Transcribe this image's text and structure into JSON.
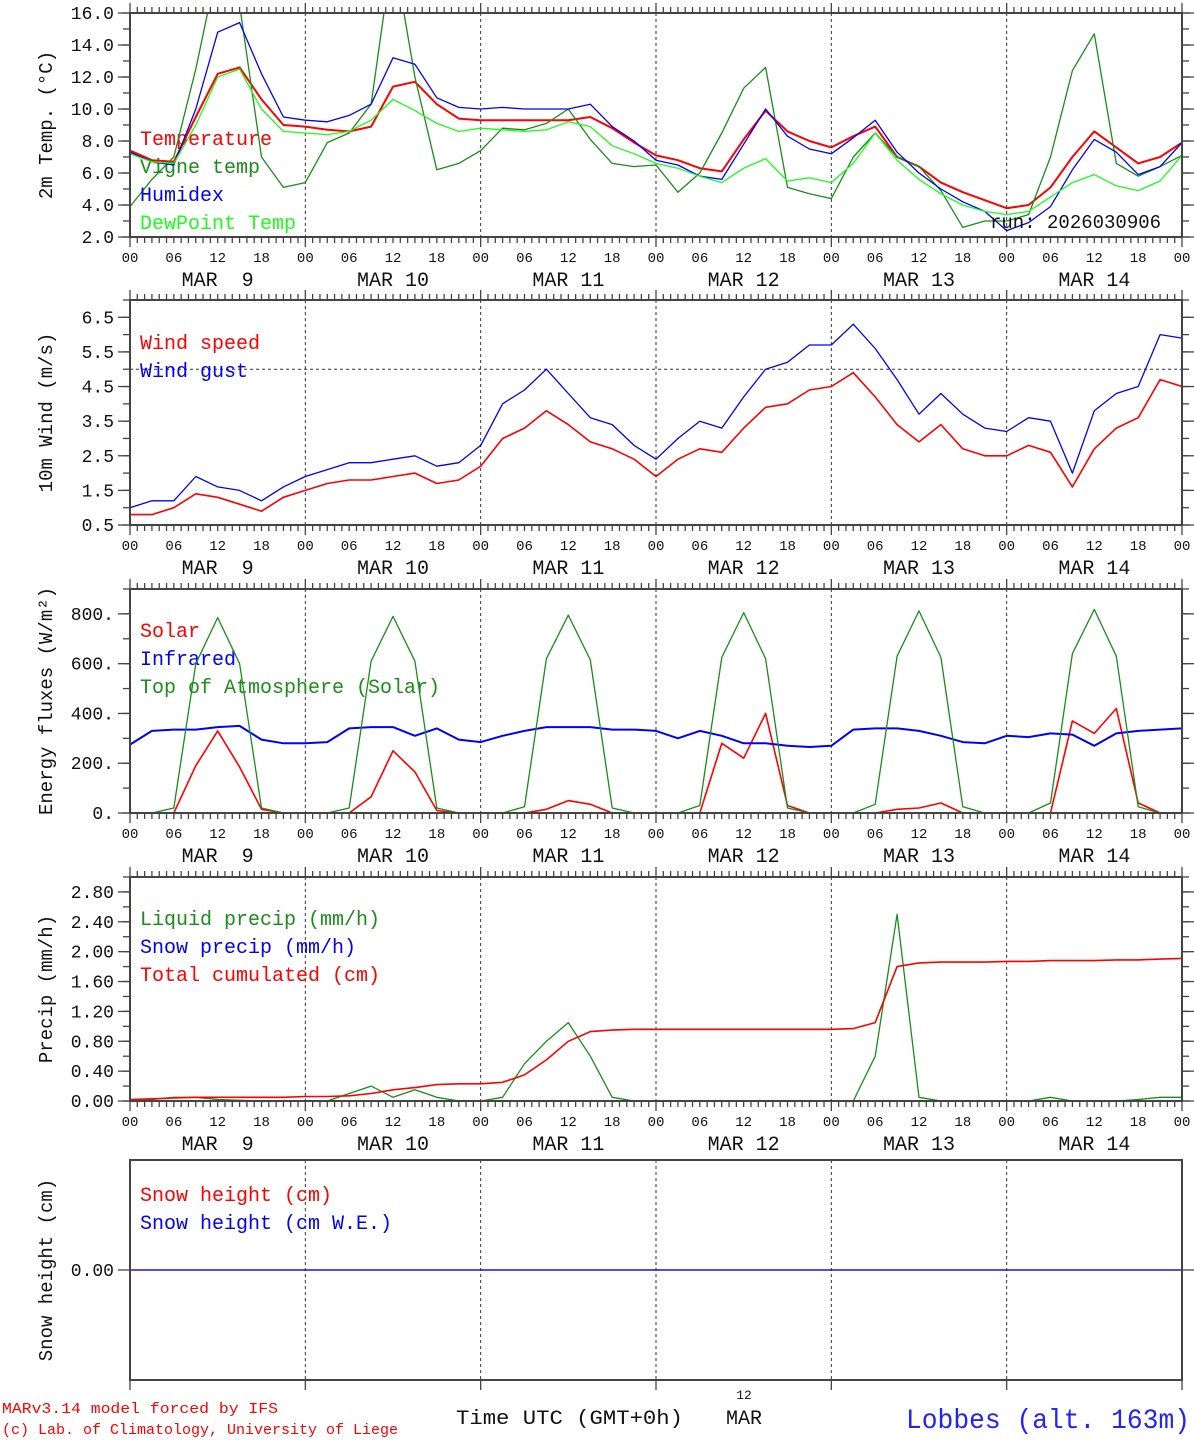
{
  "run_label": "run: 2026030906",
  "footer": {
    "model": "MARv3.14 model forced by IFS",
    "copyright": "(c) Lab. of Climatology, University of Liege",
    "time_axis": "Time UTC (GMT+0h)",
    "center_hour": "12",
    "center_month": "MAR",
    "station": "Lobbes (alt. 163m)"
  },
  "colors": {
    "red": "#ff0000",
    "green": "#1a8c1a",
    "blue": "#0000ff",
    "lightgreen": "#19ff19",
    "text": "#111111"
  },
  "x_axis": {
    "hours_range": [
      0,
      144
    ],
    "hour_labels": [
      "00",
      "06",
      "12",
      "18"
    ],
    "day_labels": [
      "MAR  9",
      "MAR 10",
      "MAR 11",
      "MAR 12",
      "MAR 13",
      "MAR 14"
    ]
  },
  "chart_data": [
    {
      "type": "line",
      "ylabel": "2m Temp. (°C)",
      "ylim": [
        2,
        16
      ],
      "yticks": [
        "2.0",
        "4.0",
        "6.0",
        "8.0",
        "10.0",
        "12.0",
        "14.0",
        "16.0"
      ],
      "x_step_hours": 3,
      "series": [
        {
          "name": "Temperature",
          "color": "#ff0000",
          "width": 2,
          "values": [
            7.4,
            6.8,
            6.7,
            9.5,
            12.2,
            12.6,
            10.6,
            9.0,
            8.9,
            8.7,
            8.6,
            8.9,
            11.4,
            11.7,
            10.3,
            9.4,
            9.3,
            9.3,
            9.3,
            9.3,
            9.3,
            9.5,
            8.8,
            7.9,
            7.1,
            6.8,
            6.3,
            6.1,
            8.1,
            9.9,
            8.6,
            8.0,
            7.6,
            8.3,
            8.9,
            7.0,
            6.4,
            5.4,
            4.8,
            4.3,
            3.8,
            4.0,
            5.1,
            7.0,
            8.6,
            7.6,
            6.6,
            7.0,
            7.9
          ]
        },
        {
          "name": "Vigne temp",
          "color": "#1a8c1a",
          "width": 1.3,
          "values": [
            3.9,
            5.6,
            7.0,
            12.5,
            19.0,
            16.5,
            7.0,
            5.1,
            5.4,
            7.9,
            8.5,
            10.3,
            20.0,
            12.0,
            6.2,
            6.6,
            7.4,
            8.8,
            8.7,
            9.1,
            10.0,
            8.1,
            6.6,
            6.4,
            6.5,
            4.8,
            6.0,
            8.5,
            11.3,
            12.6,
            5.1,
            4.7,
            4.4,
            7.0,
            8.5,
            7.0,
            6.4,
            4.9,
            2.6,
            3.0,
            3.0,
            3.4,
            7.0,
            12.4,
            14.7,
            6.6,
            5.8,
            6.4,
            7.1
          ]
        },
        {
          "name": "Humidex",
          "color": "#0000ff",
          "width": 1.3,
          "values": [
            7.3,
            6.7,
            6.5,
            10.0,
            14.8,
            15.4,
            12.2,
            9.5,
            9.3,
            9.2,
            9.6,
            10.3,
            13.2,
            12.8,
            10.7,
            10.1,
            10.0,
            10.1,
            10.0,
            10.0,
            10.0,
            10.3,
            8.9,
            8.0,
            6.8,
            6.5,
            5.8,
            5.6,
            7.8,
            10.0,
            8.3,
            7.5,
            7.2,
            8.2,
            9.3,
            7.3,
            6.0,
            5.0,
            4.2,
            3.6,
            2.4,
            2.9,
            3.9,
            6.2,
            8.1,
            7.3,
            5.9,
            6.4,
            7.9
          ]
        },
        {
          "name": "DewPoint Temp",
          "color": "#19ff19",
          "width": 1.3,
          "values": [
            7.2,
            6.7,
            6.6,
            9.0,
            12.0,
            12.5,
            10.0,
            8.6,
            8.5,
            8.4,
            8.6,
            9.3,
            10.6,
            9.9,
            9.1,
            8.6,
            8.8,
            8.7,
            8.6,
            8.7,
            9.2,
            8.9,
            7.7,
            7.2,
            6.6,
            6.3,
            5.8,
            5.4,
            6.3,
            6.9,
            5.5,
            5.7,
            5.4,
            6.6,
            8.5,
            6.8,
            5.6,
            4.7,
            4.0,
            3.6,
            3.4,
            3.6,
            4.5,
            5.4,
            5.9,
            5.2,
            4.9,
            5.5,
            7.1
          ]
        }
      ]
    },
    {
      "type": "line",
      "ylabel": "10m Wind (m/s)",
      "ylim": [
        0.5,
        7.0
      ],
      "yticks": [
        "0.5",
        "1.5",
        "2.5",
        "3.5",
        "4.5",
        "5.5",
        "6.5"
      ],
      "reference_line": 5.0,
      "x_step_hours": 3,
      "series": [
        {
          "name": "Wind speed",
          "color": "#ff0000",
          "width": 1.6,
          "values": [
            0.8,
            0.8,
            1.0,
            1.4,
            1.3,
            1.1,
            0.9,
            1.3,
            1.5,
            1.7,
            1.8,
            1.8,
            1.9,
            2.0,
            1.7,
            1.8,
            2.2,
            3.0,
            3.3,
            3.8,
            3.4,
            2.9,
            2.7,
            2.4,
            1.9,
            2.4,
            2.7,
            2.6,
            3.3,
            3.9,
            4.0,
            4.4,
            4.5,
            4.9,
            4.2,
            3.4,
            2.9,
            3.4,
            2.7,
            2.5,
            2.5,
            2.8,
            2.6,
            1.6,
            2.7,
            3.3,
            3.6,
            4.7,
            4.5
          ]
        },
        {
          "name": "Wind gust",
          "color": "#0000ff",
          "width": 1.3,
          "values": [
            1.0,
            1.2,
            1.2,
            1.9,
            1.6,
            1.5,
            1.2,
            1.6,
            1.9,
            2.1,
            2.3,
            2.3,
            2.4,
            2.5,
            2.2,
            2.3,
            2.8,
            4.0,
            4.4,
            5.0,
            4.3,
            3.6,
            3.4,
            2.8,
            2.4,
            3.0,
            3.5,
            3.3,
            4.2,
            5.0,
            5.2,
            5.7,
            5.7,
            6.3,
            5.6,
            4.7,
            3.7,
            4.3,
            3.7,
            3.3,
            3.2,
            3.6,
            3.5,
            2.0,
            3.8,
            4.3,
            4.5,
            6.0,
            5.9
          ]
        }
      ]
    },
    {
      "type": "line",
      "ylabel": "Energy fluxes (W/m²)",
      "ylim": [
        0,
        900
      ],
      "yticks": [
        "0.",
        "200.",
        "400.",
        "600.",
        "800."
      ],
      "x_step_hours": 3,
      "series": [
        {
          "name": "Solar",
          "color": "#ff0000",
          "width": 1.6,
          "values": [
            0,
            0,
            0,
            190,
            330,
            185,
            15,
            0,
            0,
            0,
            0,
            65,
            250,
            165,
            10,
            0,
            0,
            0,
            0,
            15,
            50,
            35,
            0,
            0,
            0,
            0,
            0,
            280,
            220,
            400,
            30,
            0,
            0,
            0,
            0,
            15,
            20,
            40,
            0,
            0,
            0,
            0,
            0,
            370,
            320,
            420,
            40,
            0,
            0
          ]
        },
        {
          "name": "Infrared",
          "color": "#0000ff",
          "width": 2,
          "values": [
            275,
            330,
            335,
            335,
            345,
            350,
            295,
            280,
            280,
            285,
            340,
            345,
            345,
            310,
            340,
            295,
            285,
            310,
            330,
            345,
            345,
            345,
            335,
            335,
            330,
            300,
            330,
            310,
            280,
            280,
            270,
            265,
            270,
            335,
            340,
            340,
            330,
            310,
            285,
            280,
            310,
            305,
            320,
            315,
            270,
            320,
            330,
            335,
            340
          ]
        },
        {
          "name": "Top of Atmosphere (Solar)",
          "color": "#1a8c1a",
          "width": 1.3,
          "values": [
            0,
            0,
            20,
            600,
            785,
            600,
            20,
            0,
            0,
            0,
            20,
            610,
            790,
            610,
            20,
            0,
            0,
            0,
            25,
            620,
            795,
            615,
            20,
            0,
            0,
            0,
            30,
            625,
            805,
            620,
            20,
            0,
            0,
            0,
            35,
            630,
            812,
            625,
            25,
            0,
            0,
            0,
            40,
            640,
            818,
            630,
            25,
            0,
            0
          ]
        }
      ]
    },
    {
      "type": "line",
      "ylabel": "Precip (mm/h)",
      "ylim": [
        0,
        3.0
      ],
      "yticks": [
        "0.00",
        "0.40",
        "0.80",
        "1.20",
        "1.60",
        "2.00",
        "2.40",
        "2.80"
      ],
      "x_step_hours": 3,
      "series": [
        {
          "name": "Liquid precip (mm/h)",
          "color": "#1a8c1a",
          "width": 1.3,
          "values": [
            0,
            0.02,
            0.05,
            0.05,
            0.02,
            0.01,
            0,
            0,
            0,
            0,
            0.1,
            0.2,
            0.05,
            0.15,
            0.05,
            0,
            0,
            0.05,
            0.5,
            0.8,
            1.05,
            0.6,
            0.05,
            0,
            0,
            0,
            0,
            0,
            0,
            0,
            0,
            0,
            0,
            0,
            0.6,
            2.5,
            0.05,
            0,
            0,
            0,
            0,
            0,
            0.05,
            0,
            0,
            0,
            0.02,
            0.05,
            0.05
          ]
        },
        {
          "name": "Snow precip (mm/h)",
          "color": "#0000ff",
          "width": 1.3,
          "values": [
            0,
            0,
            0,
            0,
            0,
            0,
            0,
            0,
            0,
            0,
            0,
            0,
            0,
            0,
            0,
            0,
            0,
            0,
            0,
            0,
            0,
            0,
            0,
            0,
            0,
            0,
            0,
            0,
            0,
            0,
            0,
            0,
            0,
            0,
            0,
            0,
            0,
            0,
            0,
            0,
            0,
            0,
            0,
            0,
            0,
            0,
            0,
            0,
            0
          ]
        },
        {
          "name": "Total cumulated (cm)",
          "color": "#ff0000",
          "width": 1.6,
          "values": [
            0.02,
            0.03,
            0.04,
            0.05,
            0.05,
            0.05,
            0.05,
            0.05,
            0.06,
            0.06,
            0.07,
            0.1,
            0.15,
            0.18,
            0.22,
            0.23,
            0.23,
            0.25,
            0.35,
            0.55,
            0.8,
            0.93,
            0.95,
            0.96,
            0.96,
            0.96,
            0.96,
            0.96,
            0.96,
            0.96,
            0.96,
            0.96,
            0.96,
            0.97,
            1.05,
            1.8,
            1.85,
            1.86,
            1.86,
            1.86,
            1.87,
            1.87,
            1.88,
            1.88,
            1.88,
            1.89,
            1.89,
            1.9,
            1.91
          ]
        }
      ]
    },
    {
      "type": "line",
      "ylabel": "Snow height (cm)",
      "ylim": [
        -1,
        1
      ],
      "yticks": [
        "0.00"
      ],
      "x_step_hours": 3,
      "series": [
        {
          "name": "Snow height (cm)",
          "color": "#ff0000",
          "width": 1.3,
          "values": [
            0,
            0,
            0,
            0,
            0,
            0,
            0,
            0,
            0,
            0,
            0,
            0,
            0,
            0,
            0,
            0,
            0,
            0,
            0,
            0,
            0,
            0,
            0,
            0,
            0,
            0,
            0,
            0,
            0,
            0,
            0,
            0,
            0,
            0,
            0,
            0,
            0,
            0,
            0,
            0,
            0,
            0,
            0,
            0,
            0,
            0,
            0,
            0,
            0
          ]
        },
        {
          "name": "Snow height (cm W.E.)",
          "color": "#0000ff",
          "width": 1.3,
          "values": [
            0,
            0,
            0,
            0,
            0,
            0,
            0,
            0,
            0,
            0,
            0,
            0,
            0,
            0,
            0,
            0,
            0,
            0,
            0,
            0,
            0,
            0,
            0,
            0,
            0,
            0,
            0,
            0,
            0,
            0,
            0,
            0,
            0,
            0,
            0,
            0,
            0,
            0,
            0,
            0,
            0,
            0,
            0,
            0,
            0,
            0,
            0,
            0,
            0
          ]
        }
      ]
    }
  ]
}
